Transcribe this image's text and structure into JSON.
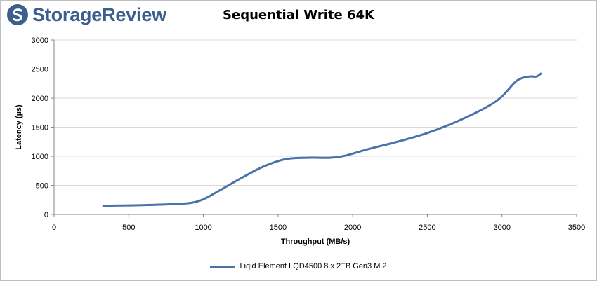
{
  "brand": {
    "name": "StorageReview",
    "logo_color": "#3d5f8e",
    "icon": "storagereview-logo-icon"
  },
  "chart_data": {
    "type": "line",
    "title": "Sequential Write 64K",
    "xlabel": "Throughput (MB/s)",
    "ylabel": "Latency (µs)",
    "xlim": [
      0,
      3500
    ],
    "ylim": [
      0,
      3000
    ],
    "xticks": [
      0,
      500,
      1000,
      1500,
      2000,
      2500,
      3000,
      3500
    ],
    "yticks": [
      0,
      500,
      1000,
      1500,
      2000,
      2500,
      3000
    ],
    "grid": "horizontal",
    "legend_position": "bottom",
    "series": [
      {
        "name": "Liqid Element LQD4500 8 x 2TB Gen3 M.2",
        "color": "#4a72ab",
        "x": [
          330,
          560,
          800,
          920,
          1000,
          1100,
          1250,
          1400,
          1550,
          1700,
          1850,
          1950,
          2100,
          2300,
          2500,
          2700,
          2900,
          3000,
          3100,
          3180,
          3230,
          3260
        ],
        "y": [
          150,
          158,
          178,
          200,
          260,
          400,
          620,
          820,
          950,
          975,
          975,
          1010,
          1120,
          1250,
          1400,
          1600,
          1850,
          2030,
          2300,
          2370,
          2370,
          2420
        ]
      }
    ]
  }
}
